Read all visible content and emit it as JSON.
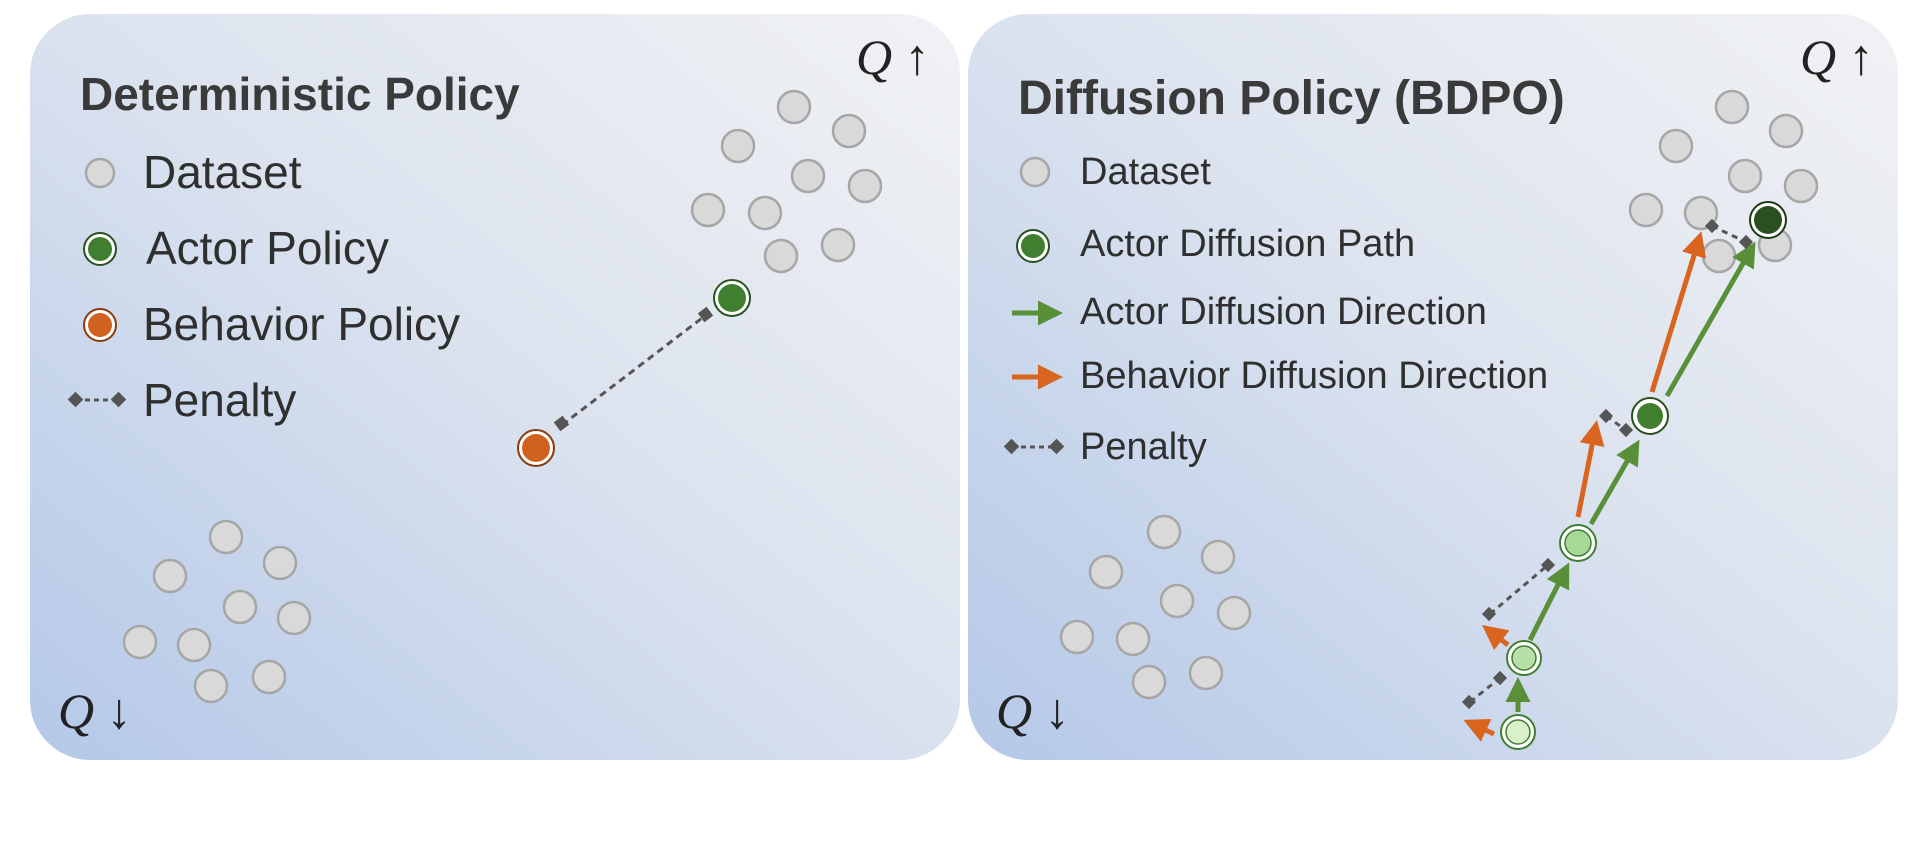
{
  "left_panel": {
    "title": "Deterministic Policy",
    "legend": {
      "dataset": "Dataset",
      "actor": "Actor Policy",
      "behavior": "Behavior Policy",
      "penalty": "Penalty"
    },
    "q_high": "Q ↑",
    "q_low": "Q ↓"
  },
  "right_panel": {
    "title": "Diffusion Policy (BDPO)",
    "legend": {
      "dataset": "Dataset",
      "actor_path": "Actor Diffusion Path",
      "actor_direction": "Actor Diffusion Direction",
      "behavior_direction": "Behavior Diffusion Direction",
      "penalty": "Penalty"
    },
    "q_high": "Q ↑",
    "q_low": "Q ↓"
  },
  "colors": {
    "dataset_fill": "#d9d9d9",
    "dataset_stroke": "#a6a6a6",
    "actor_green": "#3f7f2f",
    "actor_green_light": "#a8d898",
    "actor_green_lightest": "#d8f0cc",
    "actor_green_dark": "#2a5020",
    "behavior_orange": "#d0621f",
    "penalty_gray": "#555555",
    "arrow_green": "#5a8f3a",
    "arrow_orange": "#d8641f"
  }
}
